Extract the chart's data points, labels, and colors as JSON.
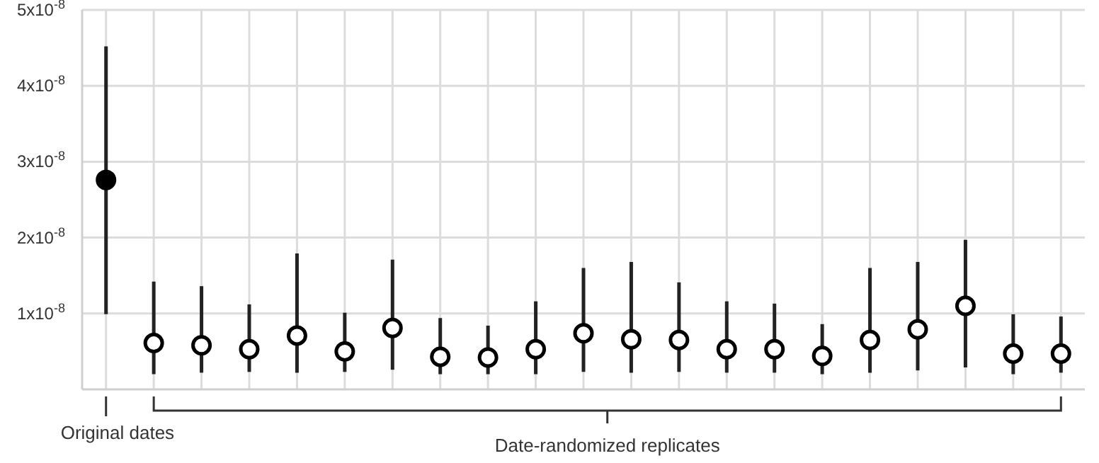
{
  "chart_data": {
    "type": "scatter",
    "categories": [
      null,
      null,
      null,
      null,
      null,
      null,
      null,
      null,
      null,
      null,
      null,
      null,
      null,
      null,
      null,
      null,
      null,
      null,
      null,
      null,
      null
    ],
    "values": [
      2.76e-08,
      6.1e-09,
      5.8e-09,
      5.3e-09,
      7.1e-09,
      5e-09,
      8.1e-09,
      4.3e-09,
      4.2e-09,
      5.3e-09,
      7.4e-09,
      6.6e-09,
      6.5e-09,
      5.3e-09,
      5.3e-09,
      4.4e-09,
      6.5e-09,
      7.9e-09,
      1.1e-08,
      4.7e-09,
      4.7e-09
    ],
    "errors": [
      [
        9.9e-09,
        4.52e-08
      ],
      [
        2e-09,
        1.42e-08
      ],
      [
        2.2e-09,
        1.36e-08
      ],
      [
        2.3e-09,
        1.12e-08
      ],
      [
        2.2e-09,
        1.79e-08
      ],
      [
        2.3e-09,
        1.01e-08
      ],
      [
        2.6e-09,
        1.71e-08
      ],
      [
        2e-09,
        9.4e-09
      ],
      [
        2e-09,
        8.4e-09
      ],
      [
        2e-09,
        1.16e-08
      ],
      [
        2.3e-09,
        1.6e-08
      ],
      [
        2.2e-09,
        1.68e-08
      ],
      [
        2.3e-09,
        1.41e-08
      ],
      [
        2.2e-09,
        1.16e-08
      ],
      [
        2.2e-09,
        1.13e-08
      ],
      [
        2e-09,
        8.6e-09
      ],
      [
        2.2e-09,
        1.6e-08
      ],
      [
        2.5e-09,
        1.68e-08
      ],
      [
        2.9e-09,
        1.97e-08
      ],
      [
        2e-09,
        9.9e-09
      ],
      [
        2.2e-09,
        9.6e-09
      ]
    ],
    "colors": [
      "#000000",
      "#ffffff",
      "#ffffff",
      "#ffffff",
      "#ffffff",
      "#ffffff",
      "#ffffff",
      "#ffffff",
      "#ffffff",
      "#ffffff",
      "#ffffff",
      "#ffffff",
      "#ffffff",
      "#ffffff",
      "#ffffff",
      "#ffffff",
      "#ffffff",
      "#ffffff",
      "#ffffff",
      "#ffffff",
      "#ffffff"
    ],
    "ylim": [
      0,
      5e-08
    ],
    "yticks": [
      {
        "value": 1e-08,
        "label": "1x10$^{-8}$"
      },
      {
        "value": 2e-08,
        "label": "2x10$^{-8}$"
      },
      {
        "value": 3e-08,
        "label": "3x10$^{-8}$"
      },
      {
        "value": 4e-08,
        "label": "4x10$^{-8}$"
      },
      {
        "value": 5e-08,
        "label": "5x10$^{-8}$"
      }
    ],
    "grid": true,
    "marker": "circle",
    "tick_labels": "y",
    "annotations": [
      "Original dates",
      "Date-randomized replicates"
    ]
  }
}
